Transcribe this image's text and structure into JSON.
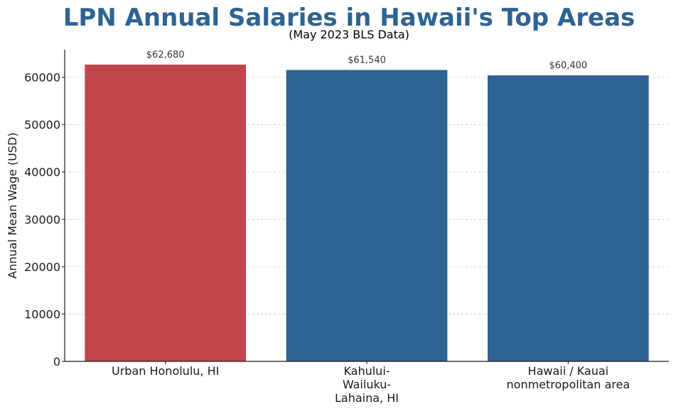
{
  "chart_data": {
    "type": "bar",
    "title": "LPN Annual Salaries in Hawaii's Top Areas",
    "subtitle": "(May 2023 BLS Data)",
    "xlabel": "",
    "ylabel": "Annual Mean Wage (USD)",
    "categories": [
      [
        "Urban Honolulu, HI"
      ],
      [
        "Kahului-",
        "Wailuku-",
        "Lahaina, HI"
      ],
      [
        "Hawaii / Kauai",
        "nonmetropolitan area"
      ]
    ],
    "values": [
      62680,
      61540,
      60400
    ],
    "data_labels": [
      "$62,680",
      "$61,540",
      "$60,400"
    ],
    "bar_colors": [
      "#c0464a",
      "#2e6392",
      "#2e6392"
    ],
    "ylim": [
      0,
      65800
    ],
    "yticks": [
      0,
      10000,
      20000,
      30000,
      40000,
      50000,
      60000
    ],
    "grid": "horizontal-dashed",
    "legend": "none"
  },
  "colors": {
    "title": "#2e6392",
    "axis": "#1a1a1a",
    "grid": "#c8c8c8"
  }
}
